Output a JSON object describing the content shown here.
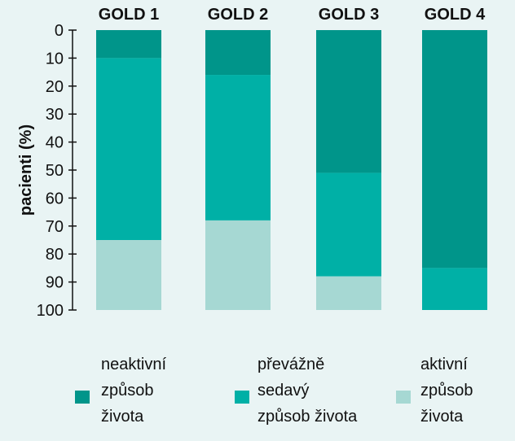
{
  "chart_data": {
    "type": "bar",
    "stacked": true,
    "orientation": "vertical",
    "y_axis_inverted": true,
    "categories": [
      "GOLD 1",
      "GOLD 2",
      "GOLD 3",
      "GOLD 4"
    ],
    "series": [
      {
        "name": "neaktivní způsob života",
        "color": "#00958a",
        "values": [
          10,
          16,
          51,
          85
        ]
      },
      {
        "name": "převážně sedavý způsob života",
        "color": "#00b0a6",
        "values": [
          65,
          52,
          37,
          15
        ]
      },
      {
        "name": "aktivní způsob života",
        "color": "#a6d8d3",
        "values": [
          25,
          32,
          12,
          0
        ]
      }
    ],
    "ylabel": "pacienti (%)",
    "ylim": [
      0,
      100
    ],
    "yticks": [
      0,
      10,
      20,
      30,
      40,
      50,
      60,
      70,
      80,
      90,
      100
    ],
    "legend_position": "bottom",
    "legend_labels": [
      [
        "neaktivní",
        "způsob",
        "života"
      ],
      [
        "převážně",
        "sedavý",
        "způsob života"
      ],
      [
        "aktivní",
        "způsob",
        "života"
      ]
    ],
    "background": "#e9f4f4"
  }
}
